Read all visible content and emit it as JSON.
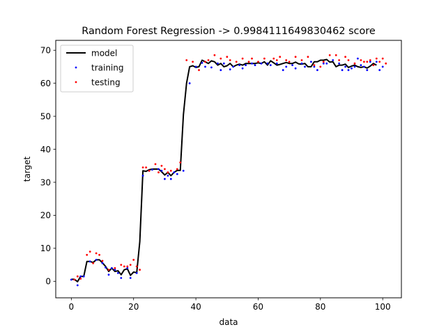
{
  "chart_data": {
    "type": "scatter",
    "title": "Random Forest Regression -> 0.9984111649830462 score",
    "xlabel": "data",
    "ylabel": "target",
    "xlim": [
      -5,
      106
    ],
    "ylim": [
      -5,
      73
    ],
    "xticks": [
      0,
      20,
      40,
      60,
      80,
      100
    ],
    "yticks": [
      0,
      10,
      20,
      30,
      40,
      50,
      60,
      70
    ],
    "grid": false,
    "legend_position": "top-left",
    "legend": [
      "model",
      "training",
      "testing"
    ],
    "series": [
      {
        "name": "model",
        "kind": "line",
        "color": "#000000",
        "x": [
          0,
          1,
          2,
          3,
          4,
          5,
          6,
          7,
          8,
          9,
          10,
          11,
          12,
          13,
          14,
          15,
          16,
          17,
          18,
          19,
          20,
          21,
          22,
          23,
          24,
          25,
          26,
          27,
          28,
          29,
          30,
          31,
          32,
          33,
          34,
          35,
          36,
          37,
          38,
          39,
          40,
          41,
          42,
          43,
          44,
          45,
          46,
          47,
          48,
          49,
          50,
          51,
          52,
          53,
          54,
          55,
          56,
          57,
          58,
          59,
          60,
          61,
          62,
          63,
          64,
          65,
          66,
          67,
          68,
          69,
          70,
          71,
          72,
          73,
          74,
          75,
          76,
          77,
          78,
          79,
          80,
          81,
          82,
          83,
          84,
          85,
          86,
          87,
          88,
          89,
          90,
          91,
          92,
          93,
          94,
          95,
          96,
          97,
          98
        ],
        "y": [
          0.6,
          0.6,
          -0.1,
          1.5,
          1.5,
          6.0,
          6.0,
          5.7,
          6.5,
          6.5,
          5.6,
          4.5,
          3.0,
          4.0,
          3.0,
          3.2,
          2.0,
          3.5,
          3.8,
          1.8,
          2.8,
          2.6,
          12.0,
          33.5,
          33.3,
          33.8,
          34.0,
          34.0,
          34.0,
          33.2,
          32.2,
          33.0,
          32.0,
          33.0,
          33.6,
          33.6,
          50.5,
          60.0,
          65.0,
          65.3,
          64.8,
          65.0,
          67.0,
          66.5,
          66.0,
          66.8,
          66.5,
          65.5,
          66.0,
          65.0,
          65.3,
          66.0,
          65.0,
          65.5,
          65.8,
          65.5,
          66.0,
          66.0,
          66.0,
          66.0,
          66.2,
          66.0,
          66.5,
          65.5,
          66.8,
          66.2,
          65.5,
          65.7,
          66.0,
          66.3,
          66.0,
          66.0,
          66.4,
          65.9,
          65.8,
          66.0,
          65.0,
          65.0,
          66.5,
          66.5,
          67.0,
          67.0,
          67.2,
          66.4,
          66.5,
          65.0,
          65.5,
          65.5,
          65.8,
          64.8,
          65.2,
          65.5,
          65.0,
          64.8,
          65.0,
          64.6,
          65.2,
          66.0,
          65.5
        ]
      },
      {
        "name": "training",
        "kind": "scatter",
        "color": "#0000ff",
        "x": [
          0,
          2,
          3,
          4,
          6,
          8,
          10,
          11,
          12,
          13,
          14,
          15,
          16,
          18,
          19,
          21,
          23,
          25,
          26,
          28,
          29,
          30,
          31,
          32,
          33,
          34,
          36,
          38,
          40,
          42,
          43,
          45,
          47,
          48,
          49,
          51,
          52,
          54,
          55,
          56,
          58,
          59,
          61,
          63,
          64,
          66,
          68,
          69,
          71,
          72,
          74,
          75,
          77,
          78,
          79,
          81,
          82,
          84,
          86,
          87,
          88,
          89,
          90,
          91,
          92,
          93,
          94,
          95,
          96,
          97,
          98,
          99,
          100
        ],
        "y": [
          0.5,
          -1.2,
          1.5,
          1.5,
          6.0,
          6.5,
          5.5,
          4.2,
          2.0,
          4.0,
          3.5,
          2.5,
          1.0,
          4.0,
          1.0,
          2.5,
          32.0,
          33.5,
          33.8,
          34.0,
          33.5,
          31.0,
          32.0,
          31.0,
          33.0,
          32.5,
          33.5,
          60.0,
          65.0,
          66.2,
          65.0,
          64.8,
          66.0,
          64.0,
          66.0,
          64.2,
          65.0,
          65.5,
          64.5,
          65.5,
          66.0,
          65.5,
          66.0,
          66.0,
          65.5,
          66.0,
          64.0,
          65.0,
          65.5,
          64.5,
          66.0,
          65.0,
          66.5,
          65.0,
          64.0,
          66.0,
          66.0,
          67.0,
          66.0,
          64.0,
          65.0,
          64.0,
          64.5,
          65.0,
          67.5,
          65.5,
          65.0,
          64.0,
          66.5,
          65.5,
          66.5,
          64.0,
          65.0
        ]
      },
      {
        "name": "testing",
        "kind": "scatter",
        "color": "#ff0000",
        "x": [
          1,
          2,
          3,
          5,
          6,
          7,
          8,
          9,
          10,
          12,
          14,
          16,
          17,
          18,
          19,
          20,
          21,
          22,
          23,
          24,
          25,
          27,
          28,
          29,
          30,
          31,
          32,
          34,
          35,
          37,
          39,
          41,
          43,
          44,
          46,
          48,
          50,
          51,
          53,
          55,
          57,
          58,
          60,
          62,
          65,
          66,
          67,
          69,
          70,
          72,
          74,
          76,
          78,
          80,
          81,
          83,
          85,
          86,
          88,
          89,
          91,
          93,
          94,
          95,
          96,
          97,
          98,
          99,
          100,
          101
        ],
        "y": [
          0.5,
          1.5,
          0.8,
          8.0,
          9.0,
          5.5,
          8.5,
          8.0,
          6.2,
          3.5,
          4.0,
          5.0,
          4.5,
          4.5,
          5.0,
          6.5,
          4.5,
          3.5,
          34.5,
          34.5,
          33.5,
          35.5,
          33.0,
          35.0,
          34.0,
          33.0,
          33.5,
          34.0,
          36.0,
          67.0,
          66.5,
          64.0,
          66.5,
          67.0,
          68.5,
          67.5,
          68.0,
          67.0,
          66.5,
          67.5,
          66.5,
          67.5,
          66.5,
          67.5,
          67.5,
          67.0,
          68.0,
          67.0,
          66.5,
          68.0,
          67.0,
          68.0,
          65.5,
          65.0,
          66.5,
          68.5,
          68.5,
          67.0,
          68.0,
          67.0,
          66.0,
          67.0,
          66.5,
          66.5,
          67.0,
          65.5,
          67.5,
          66.5,
          67.5,
          66.0
        ]
      }
    ]
  }
}
